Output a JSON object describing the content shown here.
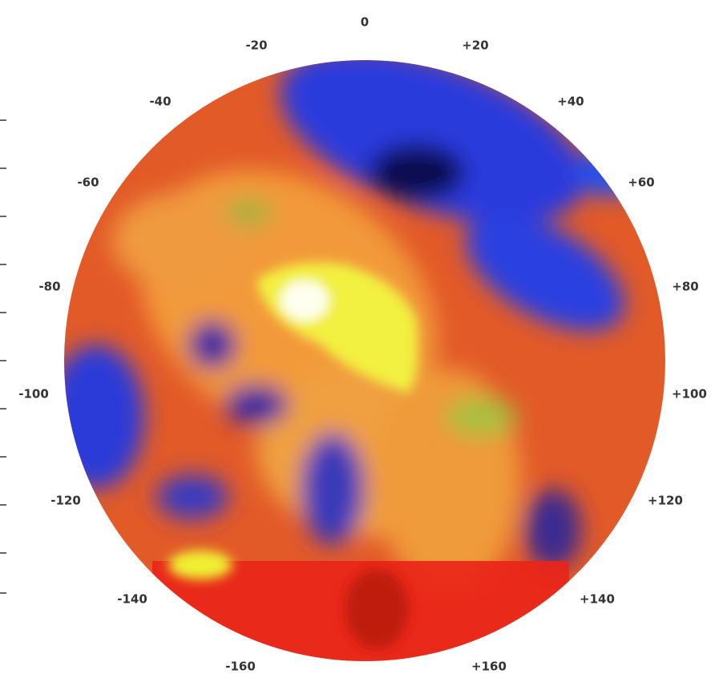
{
  "angle_labels": [
    "0",
    "-20",
    "+20",
    "-40",
    "+40",
    "-60",
    "+60",
    "-80",
    "+80",
    "-100",
    "+100",
    "-120",
    "+120",
    "-140",
    "+140",
    "-160",
    "+160"
  ]
}
